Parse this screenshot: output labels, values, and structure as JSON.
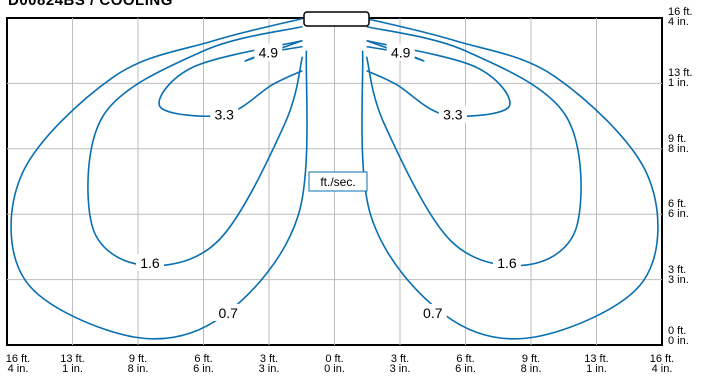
{
  "chart_data": {
    "type": "line",
    "title": "D00824BS / COOLING",
    "x_ticks": [
      "16 ft.\n4 in.",
      "13 ft.\n1 in.",
      "9 ft.\n8 in.",
      "6 ft.\n6 in.",
      "3 ft.\n3 in.",
      "0 ft.\n0 in.",
      "3 ft.\n3 in.",
      "6 ft.\n6 in.",
      "9 ft.\n8 in.",
      "13 ft.\n1 in.",
      "16 ft.\n4 in."
    ],
    "y_ticks": [
      "16 ft.\n4 in.",
      "13 ft.\n1 in.",
      "9 ft.\n8 in.",
      "6 ft.\n6 in.",
      "3 ft.\n3 in.",
      "0 ft.\n0 in."
    ],
    "x_range": [
      -16.33,
      16.33
    ],
    "y_range": [
      0,
      16.33
    ],
    "units_label": "ft./sec.",
    "grid": true,
    "series": [
      {
        "name": "0.7",
        "label_points": [
          [
            -5.3,
            1.6
          ],
          [
            4.9,
            1.6
          ]
        ],
        "values": [
          [
            -1.6,
            16.3
          ],
          [
            -6.0,
            15.2
          ],
          [
            -11.0,
            13.4
          ],
          [
            -15.6,
            8.5
          ],
          [
            -15.4,
            3.2
          ],
          [
            -10.0,
            0.4
          ],
          [
            -5.5,
            1.5
          ],
          [
            -1.8,
            6.5
          ],
          [
            -1.4,
            14.7
          ]
        ]
      },
      {
        "name": "1.6",
        "label_points": [
          [
            -9.2,
            4.1
          ],
          [
            8.6,
            4.1
          ]
        ],
        "values": [
          [
            -1.6,
            15.9
          ],
          [
            -6.5,
            14.7
          ],
          [
            -11.5,
            11.5
          ],
          [
            -12.1,
            6.0
          ],
          [
            -9.6,
            4.0
          ],
          [
            -5.8,
            5.2
          ],
          [
            -2.5,
            11.0
          ],
          [
            -1.6,
            14.4
          ]
        ]
      },
      {
        "name": "3.3",
        "label_points": [
          [
            -5.5,
            11.5
          ],
          [
            5.9,
            11.5
          ]
        ],
        "values": [
          [
            -1.6,
            15.2
          ],
          [
            -7.0,
            13.9
          ],
          [
            -8.7,
            11.9
          ],
          [
            -5.5,
            11.5
          ],
          [
            -3.1,
            13.0
          ],
          [
            -1.6,
            13.7
          ]
        ]
      },
      {
        "name": "4.9",
        "label_points": [
          [
            -3.3,
            14.6
          ],
          [
            3.3,
            14.6
          ]
        ],
        "values": [
          [
            -1.6,
            15.2
          ],
          [
            -4.4,
            14.2
          ],
          [
            -3.3,
            14.6
          ],
          [
            -1.6,
            14.9
          ]
        ]
      }
    ],
    "colors": {
      "contour": "#0a6fb0",
      "label_fill": "#ffffff",
      "label_text": "#000000",
      "frame": "#000000",
      "grid": "#bdbdbd"
    }
  }
}
